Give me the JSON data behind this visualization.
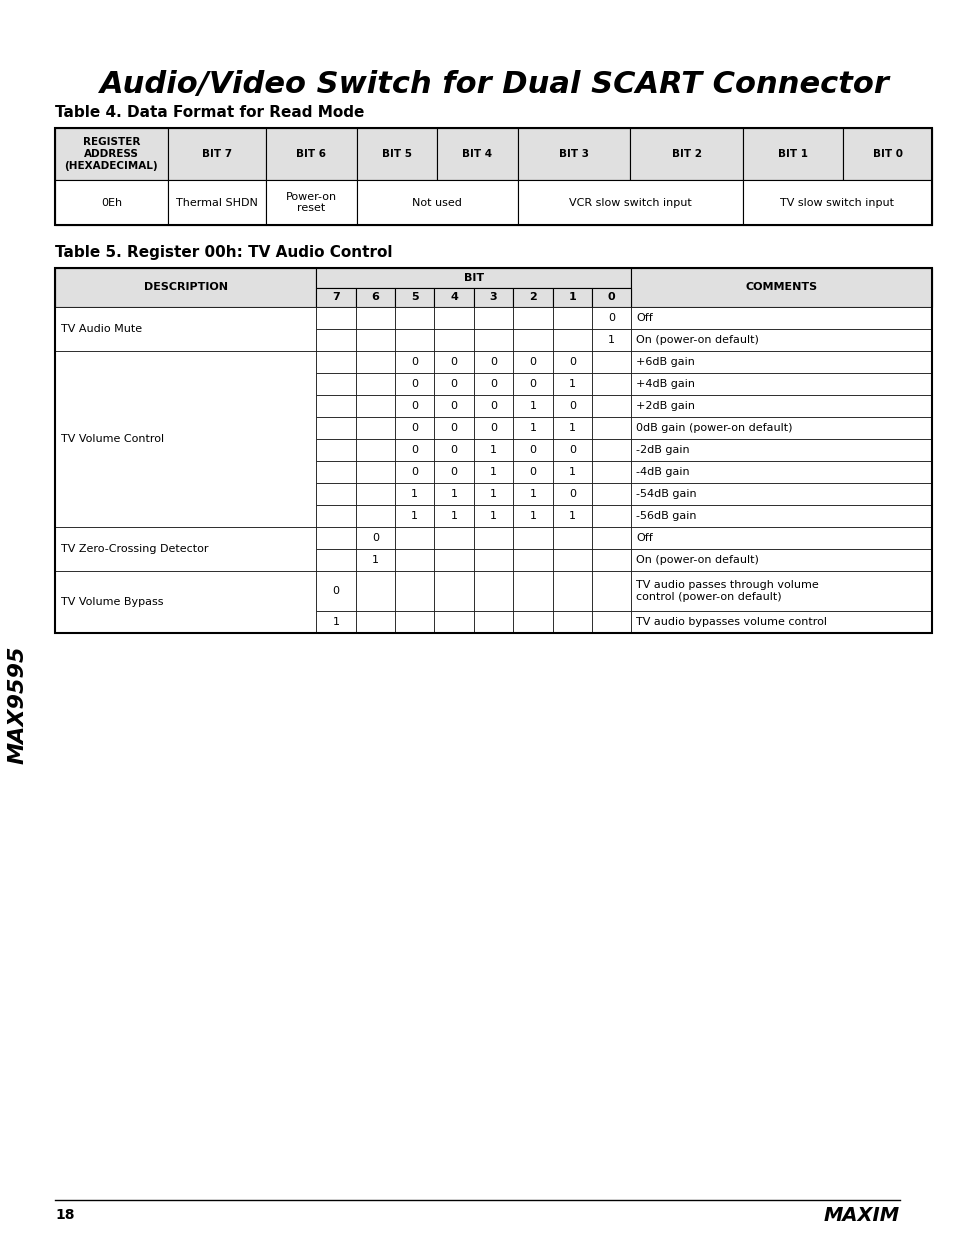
{
  "page_title": "Audio/Video Switch for Dual SCART Connector",
  "page_number": "18",
  "sidebar_text": "MAX9595",
  "table4_title": "Table 4. Data Format for Read Mode",
  "table4_headers": [
    "REGISTER\nADDRESS\n(HEXADECIMAL)",
    "BIT 7",
    "BIT 6",
    "BIT 5",
    "BIT 4",
    "BIT 3",
    "BIT 2",
    "BIT 1",
    "BIT 0"
  ],
  "table5_title": "Table 5. Register 00h: TV Audio Control",
  "bg_color": "#ffffff",
  "header_bg": "#e0e0e0",
  "border_color": "#000000",
  "text_color": "#000000"
}
